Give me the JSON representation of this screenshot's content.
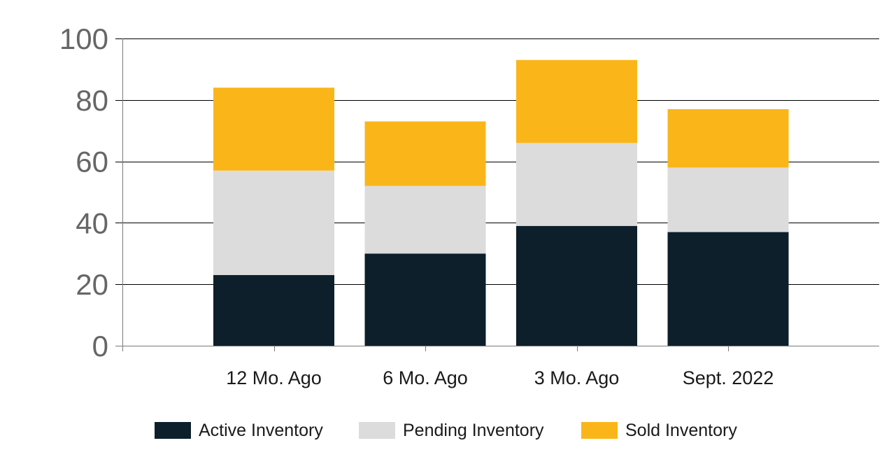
{
  "chart_data": {
    "type": "bar",
    "stacked": true,
    "categories": [
      "12 Mo. Ago",
      "6 Mo. Ago",
      "3 Mo. Ago",
      "Sept. 2022"
    ],
    "series": [
      {
        "name": "Active Inventory",
        "color": "#0d1f2b",
        "values": [
          23,
          30,
          39,
          37
        ]
      },
      {
        "name": "Pending Inventory",
        "color": "#dcdcdc",
        "values": [
          34,
          22,
          27,
          21
        ]
      },
      {
        "name": "Sold Inventory",
        "color": "#fab619",
        "values": [
          27,
          21,
          27,
          19
        ]
      }
    ],
    "ylim": [
      0,
      100
    ],
    "yticks": [
      0,
      20,
      40,
      60,
      80,
      100
    ],
    "grid": true,
    "legend": "bottom"
  }
}
